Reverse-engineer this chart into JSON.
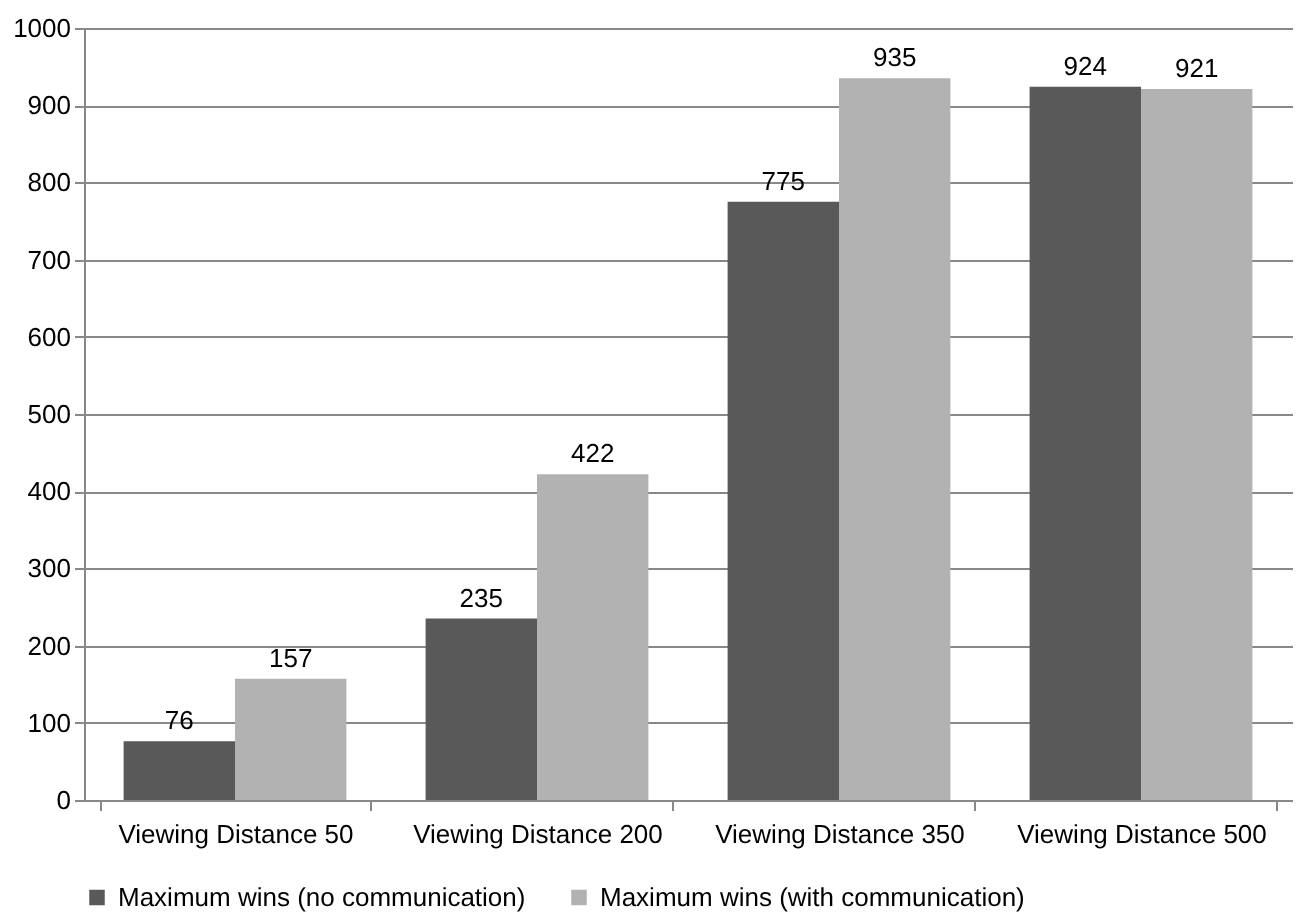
{
  "chart_data": {
    "type": "bar",
    "categories": [
      "Viewing Distance 50",
      "Viewing Distance 200",
      "Viewing Distance 350",
      "Viewing Distance 500"
    ],
    "series": [
      {
        "name": "Maximum wins (no communication)",
        "color": "#595959",
        "values": [
          76,
          235,
          775,
          924
        ]
      },
      {
        "name": "Maximum wins (with communication)",
        "color": "#b2b2b2",
        "values": [
          157,
          422,
          935,
          921
        ]
      }
    ],
    "ylim": [
      0,
      1000
    ],
    "yticks": [
      0,
      100,
      200,
      300,
      400,
      500,
      600,
      700,
      800,
      900,
      1000
    ],
    "grid": "y",
    "legend": "bottom",
    "data_labels": true
  }
}
